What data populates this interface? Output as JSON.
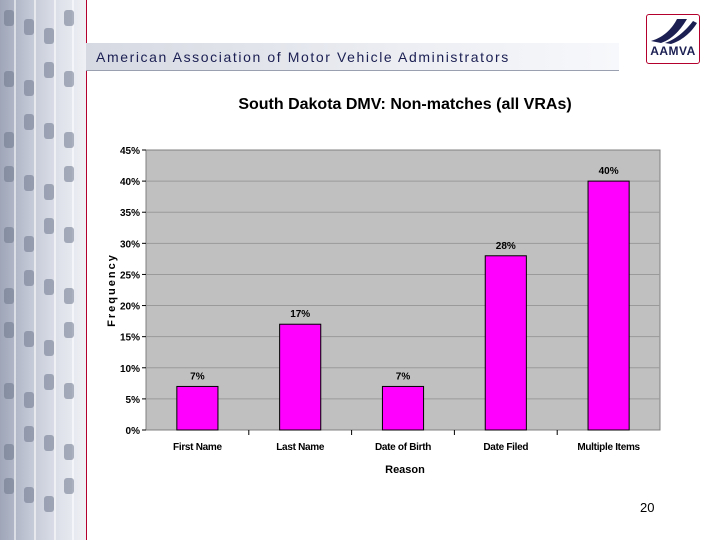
{
  "header": {
    "title": "American Association of Motor Vehicle Administrators",
    "logo_text": "AAMVA"
  },
  "page_number": "20",
  "colors": {
    "bar": "#ff00ff",
    "plot_bg": "#c0c0c0",
    "accent": "#b3002d",
    "header_text": "#1b1f52"
  },
  "chart_data": {
    "type": "bar",
    "title": "South Dakota DMV: Non-matches (all VRAs)",
    "xlabel": "Reason",
    "ylabel": "Frequency",
    "categories": [
      "First Name",
      "Last Name",
      "Date of Birth",
      "Date Filed",
      "Multiple Items"
    ],
    "values": [
      7,
      17,
      7,
      28,
      40
    ],
    "value_labels": [
      "7%",
      "17%",
      "7%",
      "28%",
      "40%"
    ],
    "ylim": [
      0,
      45
    ],
    "yticks": [
      0,
      5,
      10,
      15,
      20,
      25,
      30,
      35,
      40,
      45
    ],
    "ytick_labels": [
      "0%",
      "5%",
      "10%",
      "15%",
      "20%",
      "25%",
      "30%",
      "35%",
      "40%",
      "45%"
    ],
    "grid": true
  }
}
